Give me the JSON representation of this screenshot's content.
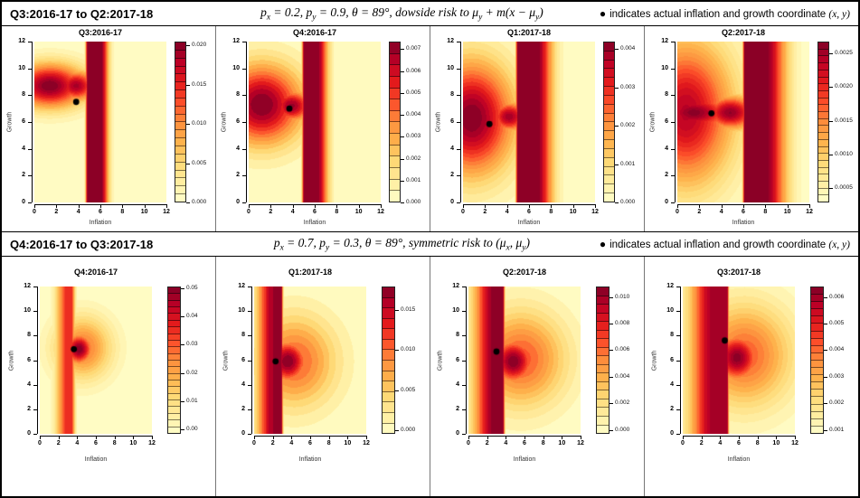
{
  "colormap": {
    "name": "YlOrRd",
    "stops": [
      "#FFFFCC",
      "#FFEDA0",
      "#FED976",
      "#FEB24C",
      "#FD8D3C",
      "#FC4E2A",
      "#E31A1C",
      "#BD0026",
      "#800026"
    ]
  },
  "sections": [
    {
      "title": "Q3:2016-17 to Q2:2017-18",
      "math": [
        {
          "t": "p"
        },
        {
          "t": "x",
          "sub": true
        },
        {
          "t": " = 0.2,  "
        },
        {
          "t": "p"
        },
        {
          "t": "y",
          "sub": true
        },
        {
          "t": " = 0.9,  "
        },
        {
          "t": "θ = 89°,  "
        },
        {
          "t": "dowside risk to μ"
        },
        {
          "t": "y",
          "sub": true
        },
        {
          "t": " + m(x − μ"
        },
        {
          "t": "y",
          "sub": true
        },
        {
          "t": ")"
        }
      ],
      "legend": {
        "bullet": "●",
        "text": "indicates actual inflation and growth coordinate",
        "coords": "(x, y)"
      }
    },
    {
      "title": "Q4:2016-17 to Q3:2017-18",
      "math": [
        {
          "t": "p"
        },
        {
          "t": "x",
          "sub": true
        },
        {
          "t": " = 0.7,  "
        },
        {
          "t": "p"
        },
        {
          "t": "y",
          "sub": true
        },
        {
          "t": " = 0.3,  "
        },
        {
          "t": "θ = 89°,  "
        },
        {
          "t": "symmetric risk to (μ"
        },
        {
          "t": "x",
          "sub": true
        },
        {
          "t": ", μ"
        },
        {
          "t": "y",
          "sub": true
        },
        {
          "t": ")"
        }
      ],
      "legend": {
        "bullet": "●",
        "text": "indicates actual inflation and growth coordinate",
        "coords": "(x, y)"
      }
    }
  ],
  "chart_data": [
    {
      "type": "heatmap",
      "section": 0,
      "title": "Q3:2016-17",
      "xlabel": "Inflation",
      "ylabel": "Growth",
      "xlim": [
        0,
        12
      ],
      "ylim": [
        0,
        12
      ],
      "xticks": [
        0,
        2,
        4,
        6,
        8,
        10,
        12
      ],
      "yticks": [
        0,
        2,
        4,
        6,
        8,
        10,
        12
      ],
      "point": {
        "x": 3.8,
        "y": 7.5
      },
      "colorbar": {
        "min": 0,
        "max": 0.0205,
        "levels": 20,
        "ticks": [
          0,
          0.005,
          0.01,
          0.015,
          0.02
        ],
        "labels": [
          "0.000",
          "0.005",
          "0.010",
          "0.015",
          "0.020"
        ]
      },
      "field": {
        "band": {
          "x0": 4.85,
          "x1": 6.0,
          "fl": 0.13,
          "fr": 0.5,
          "a": 1
        },
        "blobs": [
          {
            "cx": 1.4,
            "cy": 8.7,
            "sx": 2.3,
            "sy": 1.15,
            "a": 1
          },
          {
            "cx": 3.8,
            "cy": 8.7,
            "sx": 1.3,
            "sy": 0.8,
            "a": 0.92
          }
        ]
      }
    },
    {
      "type": "heatmap",
      "section": 0,
      "title": "Q4:2016-17",
      "xlabel": "Inflation",
      "ylabel": "Growth",
      "xlim": [
        0,
        12
      ],
      "ylim": [
        0,
        12
      ],
      "xticks": [
        0,
        2,
        4,
        6,
        8,
        10,
        12
      ],
      "yticks": [
        0,
        2,
        4,
        6,
        8,
        10,
        12
      ],
      "point": {
        "x": 3.7,
        "y": 7.0
      },
      "colorbar": {
        "min": 0,
        "max": 0.00735,
        "levels": 14,
        "ticks": [
          0,
          0.001,
          0.002,
          0.003,
          0.004,
          0.005,
          0.006,
          0.007
        ],
        "labels": [
          "0.000",
          "0.001",
          "0.002",
          "0.003",
          "0.004",
          "0.005",
          "0.006",
          "0.007"
        ]
      },
      "field": {
        "band": {
          "x0": 5.05,
          "x1": 6.15,
          "fl": 0.13,
          "fr": 0.7,
          "a": 1
        },
        "blobs": [
          {
            "cx": 1.2,
            "cy": 7.3,
            "sx": 2.6,
            "sy": 2.1,
            "a": 1
          },
          {
            "cx": 3.9,
            "cy": 7.2,
            "sx": 1.3,
            "sy": 0.85,
            "a": 0.95
          }
        ]
      }
    },
    {
      "type": "heatmap",
      "section": 0,
      "title": "Q1:2017-18",
      "xlabel": "Inflation",
      "ylabel": "Growth",
      "xlim": [
        0,
        12
      ],
      "ylim": [
        0,
        12
      ],
      "xticks": [
        0,
        2,
        4,
        6,
        8,
        10,
        12
      ],
      "yticks": [
        0,
        2,
        4,
        6,
        8,
        10,
        12
      ],
      "point": {
        "x": 2.4,
        "y": 5.85
      },
      "colorbar": {
        "min": 0,
        "max": 0.0042,
        "levels": 18,
        "ticks": [
          0,
          0.001,
          0.002,
          0.003,
          0.004
        ],
        "labels": [
          "0.000",
          "0.001",
          "0.002",
          "0.003",
          "0.004"
        ]
      },
      "field": {
        "band": {
          "x0": 5.0,
          "x1": 6.6,
          "fl": 0.13,
          "fr": 1.05,
          "a": 1
        },
        "blobs": [
          {
            "cx": 0.8,
            "cy": 6.3,
            "sx": 2.7,
            "sy": 3.0,
            "a": 1
          },
          {
            "cx": 4.2,
            "cy": 6.4,
            "sx": 1.2,
            "sy": 0.8,
            "a": 0.93
          }
        ]
      }
    },
    {
      "type": "heatmap",
      "section": 0,
      "title": "Q2:2017-18",
      "xlabel": "Inflation",
      "ylabel": "Growth",
      "xlim": [
        0,
        12
      ],
      "ylim": [
        0,
        12
      ],
      "xticks": [
        0,
        2,
        4,
        6,
        8,
        10,
        12
      ],
      "yticks": [
        0,
        2,
        4,
        6,
        8,
        10,
        12
      ],
      "point": {
        "x": 3.1,
        "y": 6.65
      },
      "colorbar": {
        "min": 0.00028,
        "max": 0.00268,
        "levels": 23,
        "ticks": [
          0.0005,
          0.001,
          0.0015,
          0.002,
          0.0025
        ],
        "labels": [
          "0.0005",
          "0.0010",
          "0.0015",
          "0.0020",
          "0.0025"
        ]
      },
      "field": {
        "band": {
          "x0": 6.15,
          "x1": 7.9,
          "fl": 0.13,
          "fr": 1.35,
          "a": 1
        },
        "blobs": [
          {
            "cx": 0.8,
            "cy": 6.7,
            "sx": 3.0,
            "sy": 3.8,
            "a": 0.88
          },
          {
            "cx": 1.5,
            "cy": 6.7,
            "sx": 2.6,
            "sy": 1.0,
            "a": 0.98
          },
          {
            "cx": 4.8,
            "cy": 6.7,
            "sx": 1.7,
            "sy": 0.9,
            "a": 0.96
          }
        ]
      }
    },
    {
      "type": "heatmap",
      "section": 1,
      "title": "Q4:2016-17",
      "xlabel": "Inflation",
      "ylabel": "Growth",
      "xlim": [
        0,
        12
      ],
      "ylim": [
        0,
        12
      ],
      "xticks": [
        0,
        2,
        4,
        6,
        8,
        10,
        12
      ],
      "yticks": [
        0,
        2,
        4,
        6,
        8,
        10,
        12
      ],
      "point": {
        "x": 3.65,
        "y": 6.9
      },
      "colorbar": {
        "min": -0.0015,
        "max": 0.0505,
        "levels": 22,
        "ticks": [
          0,
          0.01,
          0.02,
          0.03,
          0.04,
          0.05
        ],
        "labels": [
          "0.00",
          "0.01",
          "0.02",
          "0.03",
          "0.04",
          "0.05"
        ]
      },
      "field": {
        "band": {
          "x0": 3.0,
          "x1": 3.35,
          "fl": 0.8,
          "fr": 0.28,
          "a": 0.72
        },
        "blobs": [
          {
            "cx": 4.2,
            "cy": 6.9,
            "sx": 1.05,
            "sy": 0.9,
            "a": 1
          },
          {
            "cx": 4.6,
            "cy": 7.0,
            "sx": 2.1,
            "sy": 1.75,
            "a": 0.55
          }
        ]
      }
    },
    {
      "type": "heatmap",
      "section": 1,
      "title": "Q1:2017-18",
      "xlabel": "Inflation",
      "ylabel": "Growth",
      "xlim": [
        0,
        12
      ],
      "ylim": [
        0,
        12
      ],
      "xticks": [
        0,
        2,
        4,
        6,
        8,
        10,
        12
      ],
      "yticks": [
        0,
        2,
        4,
        6,
        8,
        10,
        12
      ],
      "point": {
        "x": 2.3,
        "y": 5.9
      },
      "colorbar": {
        "min": -0.0005,
        "max": 0.018,
        "levels": 14,
        "ticks": [
          0,
          0.005,
          0.01,
          0.015
        ],
        "labels": [
          "0.000",
          "0.005",
          "0.010",
          "0.015"
        ]
      },
      "field": {
        "band": {
          "x0": 2.05,
          "x1": 2.9,
          "fl": 1.15,
          "fr": 0.13,
          "a": 0.93
        },
        "blobs": [
          {
            "cx": 3.6,
            "cy": 5.9,
            "sx": 1.5,
            "sy": 1.25,
            "a": 1
          },
          {
            "cx": 4.3,
            "cy": 5.9,
            "sx": 3.1,
            "sy": 2.6,
            "a": 0.6
          }
        ]
      }
    },
    {
      "type": "heatmap",
      "section": 1,
      "title": "Q2:2017-18",
      "xlabel": "Inflation",
      "ylabel": "Growth",
      "xlim": [
        0,
        12
      ],
      "ylim": [
        0,
        12
      ],
      "xticks": [
        0,
        2,
        4,
        6,
        8,
        10,
        12
      ],
      "yticks": [
        0,
        2,
        4,
        6,
        8,
        10,
        12
      ],
      "point": {
        "x": 3.0,
        "y": 6.7
      },
      "colorbar": {
        "min": -0.0003,
        "max": 0.0108,
        "levels": 17,
        "ticks": [
          0,
          0.002,
          0.004,
          0.006,
          0.008,
          0.01
        ],
        "labels": [
          "0.000",
          "0.002",
          "0.004",
          "0.006",
          "0.008",
          "0.010"
        ]
      },
      "field": {
        "band": {
          "x0": 2.65,
          "x1": 3.7,
          "fl": 1.4,
          "fr": 0.12,
          "a": 0.95
        },
        "blobs": [
          {
            "cx": 4.8,
            "cy": 5.9,
            "sx": 1.6,
            "sy": 1.3,
            "a": 1
          },
          {
            "cx": 5.6,
            "cy": 6.1,
            "sx": 3.3,
            "sy": 2.7,
            "a": 0.62
          }
        ]
      }
    },
    {
      "type": "heatmap",
      "section": 1,
      "title": "Q3:2017-18",
      "xlabel": "Inflation",
      "ylabel": "Growth",
      "xlim": [
        0,
        12
      ],
      "ylim": [
        0,
        12
      ],
      "xticks": [
        0,
        2,
        4,
        6,
        8,
        10,
        12
      ],
      "yticks": [
        0,
        2,
        4,
        6,
        8,
        10,
        12
      ],
      "point": {
        "x": 4.5,
        "y": 7.6
      },
      "colorbar": {
        "min": 0.00085,
        "max": 0.0064,
        "levels": 20,
        "ticks": [
          0.001,
          0.002,
          0.003,
          0.004,
          0.005,
          0.006
        ],
        "labels": [
          "0.001",
          "0.002",
          "0.003",
          "0.004",
          "0.005",
          "0.006"
        ]
      },
      "field": {
        "band": {
          "x0": 3.3,
          "x1": 4.75,
          "fl": 1.7,
          "fr": 0.12,
          "a": 0.93
        },
        "blobs": [
          {
            "cx": 5.8,
            "cy": 6.2,
            "sx": 1.7,
            "sy": 1.4,
            "a": 0.98
          },
          {
            "cx": 6.6,
            "cy": 6.4,
            "sx": 3.5,
            "sy": 2.9,
            "a": 0.6
          }
        ]
      }
    }
  ]
}
